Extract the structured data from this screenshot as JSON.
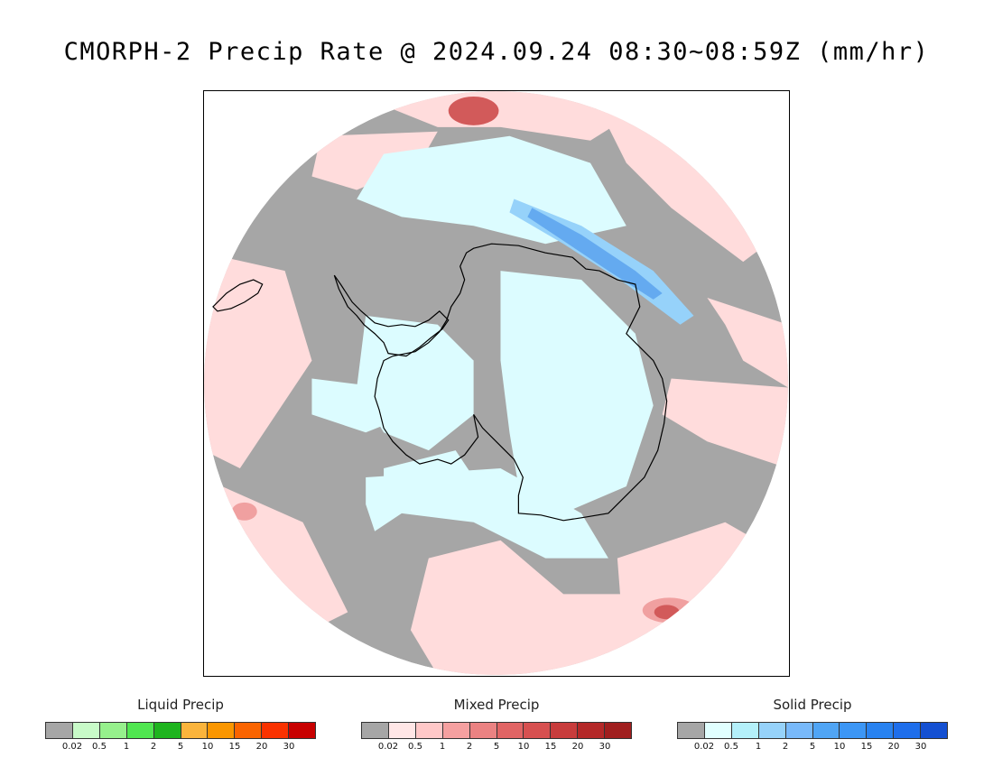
{
  "title": "CMORPH-2 Precip Rate @ 2024.09.24 08:30~08:59Z (mm/hr)",
  "map": {
    "colors": {
      "no_precip": "#a6a6a6",
      "mixed_light": "#ffdcdc",
      "mixed_mid": "#f0a0a0",
      "mixed_heavy": "#d25a5a",
      "solid_light": "#dcfcff",
      "solid_mid": "#96d2fa",
      "solid_heavy": "#64aaf0",
      "liquid_light": "#b4f0a0",
      "coastline": "#000000"
    }
  },
  "legends": [
    {
      "title": "Liquid Precip",
      "colors": [
        "#a6a6a6",
        "#c8fac8",
        "#96f08c",
        "#50e650",
        "#1eb41e",
        "#fab43c",
        "#fa9600",
        "#fa6400",
        "#fa3200",
        "#c80000"
      ],
      "ticks": [
        "0.02",
        "0.5",
        "1",
        "2",
        "5",
        "10",
        "15",
        "20",
        "30"
      ]
    },
    {
      "title": "Mixed Precip",
      "colors": [
        "#a6a6a6",
        "#ffe6e6",
        "#ffc8c8",
        "#f5a0a0",
        "#eb8282",
        "#e16464",
        "#d75050",
        "#c83c3c",
        "#b42828",
        "#a01e1e"
      ],
      "ticks": [
        "0.02",
        "0.5",
        "1",
        "2",
        "5",
        "10",
        "15",
        "20",
        "30"
      ]
    },
    {
      "title": "Solid Precip",
      "colors": [
        "#a6a6a6",
        "#e1ffff",
        "#b4f0fa",
        "#96d2fa",
        "#78b9fa",
        "#50a5f5",
        "#3c96f5",
        "#2882f0",
        "#1e6eeb",
        "#1450d2"
      ],
      "ticks": [
        "0.02",
        "0.5",
        "1",
        "2",
        "5",
        "10",
        "15",
        "20",
        "30"
      ]
    }
  ]
}
